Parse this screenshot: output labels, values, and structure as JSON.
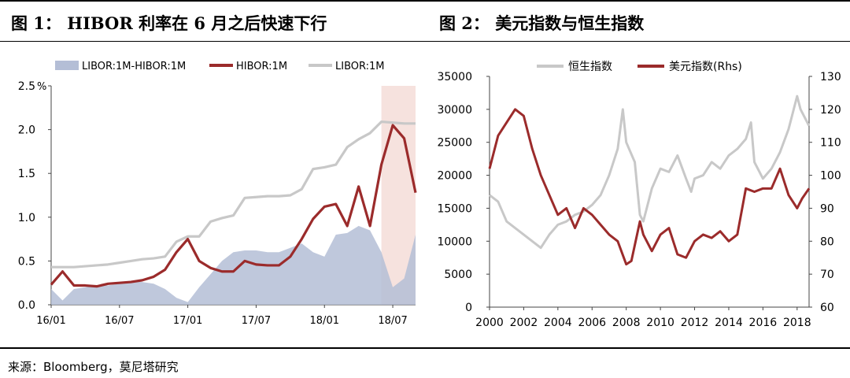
{
  "charts": {
    "left": {
      "title": "图 1： HIBOR 利率在 6 月之后快速下行"
    },
    "right": {
      "title": "图 2： 美元指数与恒生指数"
    }
  },
  "source": "来源：Bloomberg，莫尼塔研究",
  "colors": {
    "red": "#9b2b2b",
    "gray": "#c8c8c8",
    "blue_fill": "#b4bed6",
    "highlight": "#f6e2de"
  },
  "chart_data": [
    {
      "type": "line",
      "title": "图 1： HIBOR 利率在 6 月之后快速下行",
      "y_unit": "%",
      "ylim": [
        0.0,
        2.5
      ],
      "y_ticks": [
        "0.0",
        "0.5",
        "1.0",
        "1.5",
        "2.0",
        "2.5"
      ],
      "x_range": [
        "2016-01",
        "2018-09"
      ],
      "x_ticks": [
        "16/01",
        "16/07",
        "17/01",
        "17/07",
        "18/01",
        "18/07"
      ],
      "legend": [
        "LIBOR:1M-HIBOR:1M",
        "HIBOR:1M",
        "LIBOR:1M"
      ],
      "legend_position": "top",
      "highlight_range": [
        "2018-06",
        "2018-09"
      ],
      "series": [
        {
          "name": "LIBOR:1M-HIBOR:1M",
          "type": "area",
          "x": [
            "2016-01",
            "2016-02",
            "2016-03",
            "2016-04",
            "2016-05",
            "2016-06",
            "2016-07",
            "2016-08",
            "2016-09",
            "2016-10",
            "2016-11",
            "2016-12",
            "2017-01",
            "2017-02",
            "2017-03",
            "2017-04",
            "2017-05",
            "2017-06",
            "2017-07",
            "2017-08",
            "2017-09",
            "2017-10",
            "2017-11",
            "2017-12",
            "2018-01",
            "2018-02",
            "2018-03",
            "2018-04",
            "2018-05",
            "2018-06",
            "2018-07",
            "2018-08",
            "2018-09"
          ],
          "values": [
            0.18,
            0.05,
            0.18,
            0.2,
            0.22,
            0.22,
            0.24,
            0.27,
            0.26,
            0.24,
            0.18,
            0.08,
            0.03,
            0.2,
            0.35,
            0.5,
            0.6,
            0.62,
            0.62,
            0.6,
            0.6,
            0.65,
            0.7,
            0.6,
            0.55,
            0.8,
            0.82,
            0.9,
            0.85,
            0.6,
            0.2,
            0.3,
            0.8
          ]
        },
        {
          "name": "HIBOR:1M",
          "x": [
            "2016-01",
            "2016-02",
            "2016-03",
            "2016-04",
            "2016-05",
            "2016-06",
            "2016-07",
            "2016-08",
            "2016-09",
            "2016-10",
            "2016-11",
            "2016-12",
            "2017-01",
            "2017-02",
            "2017-03",
            "2017-04",
            "2017-05",
            "2017-06",
            "2017-07",
            "2017-08",
            "2017-09",
            "2017-10",
            "2017-11",
            "2017-12",
            "2018-01",
            "2018-02",
            "2018-03",
            "2018-04",
            "2018-05",
            "2018-06",
            "2018-07",
            "2018-08",
            "2018-09"
          ],
          "values": [
            0.23,
            0.38,
            0.22,
            0.22,
            0.21,
            0.24,
            0.25,
            0.26,
            0.28,
            0.32,
            0.4,
            0.6,
            0.75,
            0.5,
            0.42,
            0.38,
            0.38,
            0.5,
            0.46,
            0.45,
            0.45,
            0.55,
            0.75,
            0.98,
            1.12,
            1.15,
            0.9,
            1.35,
            0.9,
            1.6,
            2.05,
            1.9,
            1.28
          ]
        },
        {
          "name": "LIBOR:1M",
          "x": [
            "2016-01",
            "2016-02",
            "2016-03",
            "2016-04",
            "2016-05",
            "2016-06",
            "2016-07",
            "2016-08",
            "2016-09",
            "2016-10",
            "2016-11",
            "2016-12",
            "2017-01",
            "2017-02",
            "2017-03",
            "2017-04",
            "2017-05",
            "2017-06",
            "2017-07",
            "2017-08",
            "2017-09",
            "2017-10",
            "2017-11",
            "2017-12",
            "2018-01",
            "2018-02",
            "2018-03",
            "2018-04",
            "2018-05",
            "2018-06",
            "2018-07",
            "2018-08",
            "2018-09"
          ],
          "values": [
            0.43,
            0.43,
            0.43,
            0.44,
            0.45,
            0.46,
            0.48,
            0.5,
            0.52,
            0.53,
            0.55,
            0.72,
            0.78,
            0.78,
            0.95,
            0.99,
            1.02,
            1.22,
            1.23,
            1.24,
            1.24,
            1.25,
            1.32,
            1.55,
            1.57,
            1.6,
            1.8,
            1.89,
            1.96,
            2.09,
            2.08,
            2.07,
            2.07
          ]
        }
      ]
    },
    {
      "type": "line",
      "title": "图 2： 美元指数与恒生指数",
      "ylim": [
        0,
        35000
      ],
      "y_ticks": [
        "0",
        "5000",
        "10000",
        "15000",
        "20000",
        "25000",
        "30000",
        "35000"
      ],
      "y2lim": [
        60,
        130
      ],
      "y2_ticks": [
        "60",
        "70",
        "80",
        "90",
        "100",
        "110",
        "120",
        "130"
      ],
      "x_range": [
        2000,
        2018.7
      ],
      "x_ticks": [
        "2000",
        "2002",
        "2004",
        "2006",
        "2008",
        "2010",
        "2012",
        "2014",
        "2016",
        "2018"
      ],
      "legend": [
        "恒生指数",
        "美元指数(Rhs)"
      ],
      "legend_position": "top",
      "series": [
        {
          "name": "恒生指数",
          "axis": "left",
          "x": [
            2000,
            2000.5,
            2001,
            2001.5,
            2002,
            2002.5,
            2003,
            2003.5,
            2004,
            2004.5,
            2005,
            2005.5,
            2006,
            2006.5,
            2007,
            2007.5,
            2007.8,
            2008,
            2008.5,
            2008.8,
            2009,
            2009.5,
            2010,
            2010.5,
            2011,
            2011.5,
            2011.8,
            2012,
            2012.5,
            2013,
            2013.5,
            2014,
            2014.5,
            2015,
            2015.3,
            2015.5,
            2016,
            2016.5,
            2017,
            2017.5,
            2018,
            2018.2,
            2018.5,
            2018.7
          ],
          "values": [
            17000,
            16000,
            13000,
            12000,
            11000,
            10000,
            9000,
            11000,
            12500,
            13000,
            14000,
            14500,
            15500,
            17000,
            20000,
            24000,
            30000,
            25000,
            22000,
            14000,
            13000,
            18000,
            21000,
            20500,
            23000,
            19500,
            17500,
            19500,
            20000,
            22000,
            21000,
            23000,
            24000,
            25500,
            28000,
            22000,
            19500,
            21000,
            23500,
            27000,
            32000,
            30000,
            28500,
            27500
          ]
        },
        {
          "name": "美元指数(Rhs)",
          "axis": "right",
          "x": [
            2000,
            2000.5,
            2001,
            2001.5,
            2002,
            2002.5,
            2003,
            2003.5,
            2004,
            2004.5,
            2005,
            2005.5,
            2006,
            2006.5,
            2007,
            2007.5,
            2008,
            2008.3,
            2008.8,
            2009,
            2009.5,
            2010,
            2010.5,
            2011,
            2011.5,
            2012,
            2012.5,
            2013,
            2013.5,
            2014,
            2014.5,
            2015,
            2015.5,
            2016,
            2016.5,
            2017,
            2017.5,
            2018,
            2018.3,
            2018.7
          ],
          "values": [
            102,
            112,
            116,
            120,
            118,
            108,
            100,
            94,
            88,
            90,
            84,
            90,
            88,
            85,
            82,
            80,
            73,
            74,
            86,
            82,
            77,
            82,
            84,
            76,
            75,
            80,
            82,
            81,
            83,
            80,
            82,
            96,
            95,
            96,
            96,
            102,
            94,
            90,
            93,
            96
          ]
        }
      ]
    }
  ]
}
